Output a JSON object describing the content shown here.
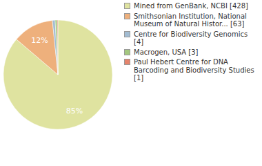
{
  "chart_data": {
    "type": "pie",
    "categories": [
      "Mined from GenBank, NCBI [428]",
      "Smithsonian Institution, National Museum of Natural Histor... [63]",
      "Centre for Biodiversity Genomics [4]",
      "Macrogen, USA [3]",
      "Paul Hebert Centre for DNA Barcoding and Biodiversity Studies [1]"
    ],
    "values": [
      85,
      12,
      0.8,
      0.6,
      0.2
    ],
    "value_labels": [
      "85%",
      "12%",
      null,
      null,
      null
    ],
    "colors": [
      "#dfe3a0",
      "#eeb07c",
      "#a2bcd2",
      "#a3c77e",
      "#e6846c"
    ],
    "data_labels": true,
    "legend": "right"
  }
}
